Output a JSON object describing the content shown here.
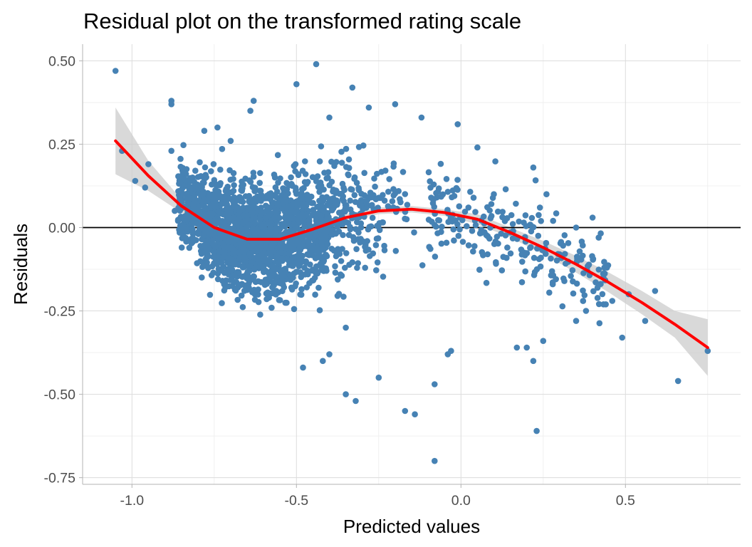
{
  "chart_data": {
    "type": "scatter",
    "title": "Residual plot on the transformed rating scale",
    "xlabel": "Predicted values",
    "ylabel": "Residuals",
    "xlim": [
      -1.15,
      0.85
    ],
    "ylim": [
      -0.77,
      0.55
    ],
    "x_ticks": [
      -1.0,
      -0.5,
      0.0,
      0.5
    ],
    "x_tick_labels": [
      "-1.0",
      "-0.5",
      "0.0",
      "0.5"
    ],
    "y_ticks": [
      -0.75,
      -0.5,
      -0.25,
      0.0,
      0.25,
      0.5
    ],
    "y_tick_labels": [
      "-0.75",
      "-0.50",
      "-0.25",
      "0.00",
      "0.25",
      "0.50"
    ],
    "grid": true,
    "legend": "none",
    "reference_line": {
      "y": 0.0,
      "color": "#000000"
    },
    "colors": {
      "points": "#4682b4",
      "smooth": "#ff0000",
      "band": "#cccccc"
    },
    "series": [
      {
        "name": "residuals",
        "type": "scatter",
        "points": [
          [
            -1.05,
            0.47
          ],
          [
            -1.03,
            0.23
          ],
          [
            -0.99,
            0.14
          ],
          [
            -0.96,
            0.12
          ],
          [
            -0.95,
            0.19
          ],
          [
            -0.88,
            0.38
          ],
          [
            -0.88,
            0.37
          ],
          [
            -0.88,
            0.23
          ],
          [
            -0.87,
            0.05
          ],
          [
            -0.86,
            0.02
          ],
          [
            -0.82,
            0.1
          ],
          [
            -0.78,
            0.29
          ],
          [
            -0.74,
            0.3
          ],
          [
            -0.7,
            0.26
          ],
          [
            -0.64,
            0.35
          ],
          [
            -0.63,
            0.38
          ],
          [
            -0.5,
            0.43
          ],
          [
            -0.44,
            0.49
          ],
          [
            -0.33,
            0.42
          ],
          [
            -0.4,
            0.33
          ],
          [
            -0.28,
            0.36
          ],
          [
            -0.2,
            0.37
          ],
          [
            -0.12,
            0.33
          ],
          [
            -0.01,
            0.31
          ],
          [
            0.05,
            0.24
          ],
          [
            -0.25,
            -0.45
          ],
          [
            -0.35,
            -0.5
          ],
          [
            -0.32,
            -0.52
          ],
          [
            -0.17,
            -0.55
          ],
          [
            -0.14,
            -0.56
          ],
          [
            -0.08,
            -0.7
          ],
          [
            0.23,
            -0.61
          ],
          [
            -0.08,
            -0.47
          ],
          [
            0.66,
            -0.46
          ],
          [
            0.75,
            -0.37
          ],
          [
            0.49,
            -0.33
          ],
          [
            0.56,
            -0.28
          ],
          [
            0.59,
            -0.19
          ],
          [
            0.22,
            -0.4
          ],
          [
            0.17,
            -0.36
          ],
          [
            0.2,
            -0.36
          ],
          [
            0.25,
            -0.34
          ],
          [
            -0.03,
            -0.37
          ],
          [
            -0.04,
            -0.38
          ],
          [
            -0.48,
            -0.42
          ],
          [
            -0.42,
            -0.4
          ],
          [
            -0.4,
            -0.38
          ],
          [
            -0.35,
            -0.3
          ],
          [
            0.35,
            -0.28
          ],
          [
            0.38,
            -0.25
          ],
          [
            0.46,
            -0.22
          ],
          [
            0.51,
            -0.2
          ],
          [
            0.3,
            -0.08
          ],
          [
            0.4,
            0.03
          ],
          [
            0.35,
            0.0
          ],
          [
            0.22,
            0.18
          ],
          [
            0.24,
            0.06
          ],
          [
            0.1,
            0.1
          ],
          [
            0.28,
            0.02
          ],
          [
            0.26,
            0.1
          ]
        ]
      },
      {
        "name": "loess fit",
        "type": "line",
        "x": [
          -1.05,
          -0.95,
          -0.85,
          -0.75,
          -0.65,
          -0.55,
          -0.45,
          -0.35,
          -0.25,
          -0.15,
          -0.05,
          0.05,
          0.15,
          0.25,
          0.35,
          0.45,
          0.55,
          0.65,
          0.75
        ],
        "y": [
          0.26,
          0.155,
          0.065,
          0.0,
          -0.035,
          -0.035,
          -0.005,
          0.03,
          0.05,
          0.055,
          0.045,
          0.025,
          -0.015,
          -0.06,
          -0.11,
          -0.165,
          -0.225,
          -0.29,
          -0.36
        ],
        "band_lower": [
          0.16,
          0.11,
          0.045,
          -0.015,
          -0.045,
          -0.045,
          -0.015,
          0.02,
          0.04,
          0.045,
          0.035,
          0.01,
          -0.03,
          -0.08,
          -0.135,
          -0.195,
          -0.26,
          -0.33,
          -0.445
        ],
        "band_upper": [
          0.36,
          0.2,
          0.085,
          0.015,
          -0.025,
          -0.025,
          0.005,
          0.04,
          0.06,
          0.065,
          0.055,
          0.04,
          0.0,
          -0.04,
          -0.085,
          -0.135,
          -0.19,
          -0.25,
          -0.275
        ]
      }
    ]
  }
}
